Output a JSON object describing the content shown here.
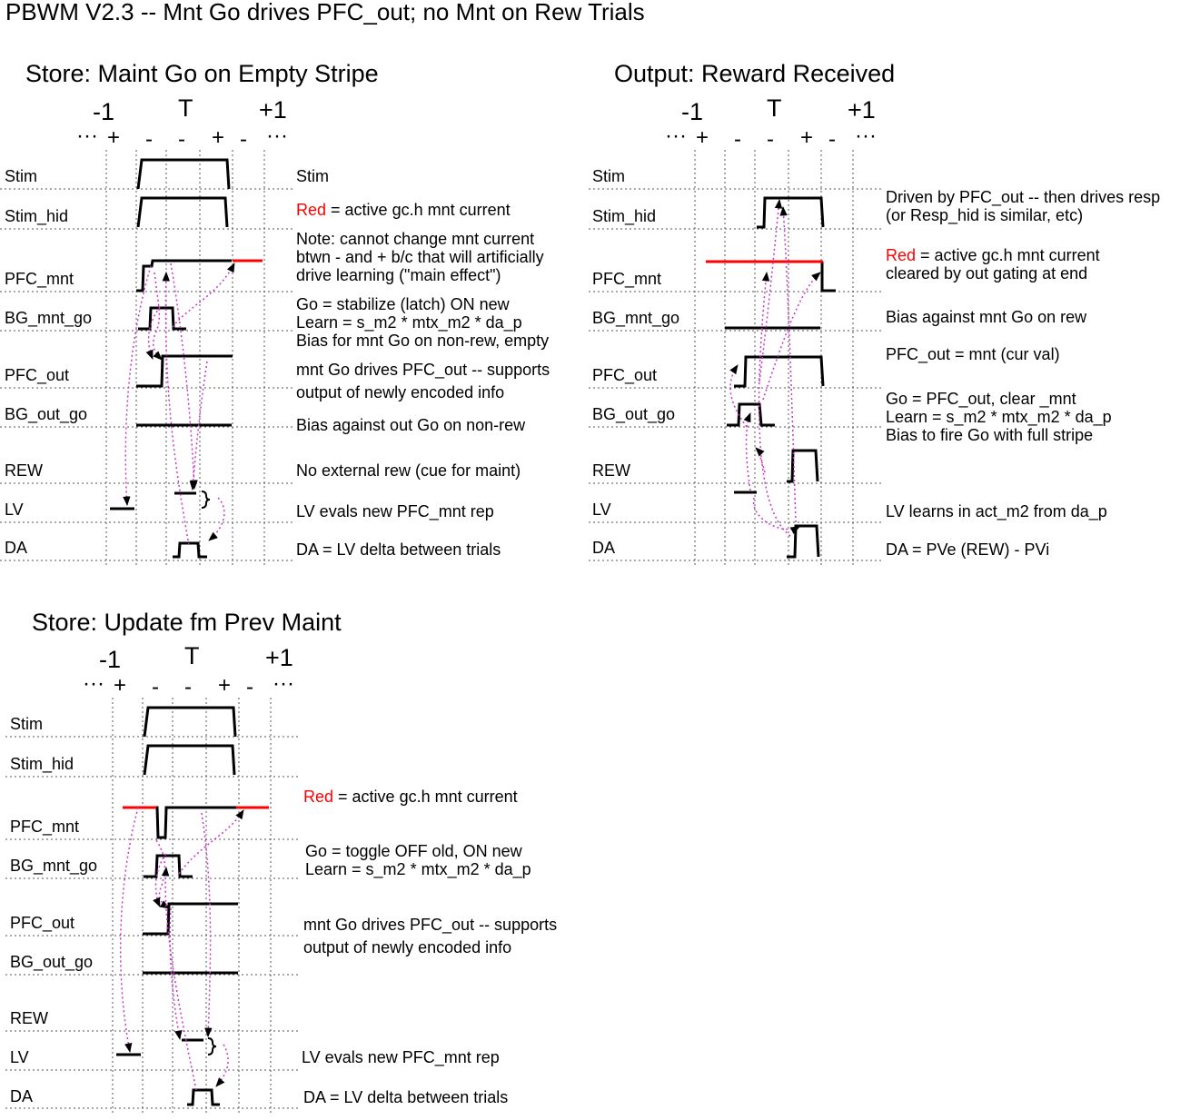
{
  "title": "PBWM V2.3 -- Mnt Go drives PFC_out; no Mnt on Rew Trials",
  "colors": {
    "active_mnt": "#ff0000",
    "arrow": "#cc33cc",
    "grid": "#555555",
    "signal": "#000000"
  },
  "panels": [
    {
      "title": "Store: Maint Go on Empty Stripe",
      "trial_labels": [
        "-1",
        "T",
        "+1"
      ],
      "phase_marks": [
        "···",
        "+",
        "-",
        "-",
        "+",
        "-",
        "···"
      ],
      "rows": [
        "Stim",
        "Stim_hid",
        "PFC_mnt",
        "BG_mnt_go",
        "PFC_out",
        "BG_out_go",
        "REW",
        "LV",
        "DA"
      ],
      "notes": [
        {
          "text": "Stim"
        },
        {
          "red": "Red",
          "text": " = active gc.h mnt current"
        },
        {
          "text": "Note: cannot change mnt current"
        },
        {
          "text": "btwn - and + b/c that will artificially"
        },
        {
          "text": "drive learning (\"main effect\")"
        },
        {
          "text": "Go = stabilize (latch) ON new"
        },
        {
          "text": "Learn = s_m2 * mtx_m2 * da_p"
        },
        {
          "text": "Bias for mnt Go on non-rew, empty"
        },
        {
          "text": "mnt Go drives PFC_out -- supports"
        },
        {
          "text": "output of newly encoded info"
        },
        {
          "text": "Bias against out Go on non-rew"
        },
        {
          "text": "No external rew (cue for maint)"
        },
        {
          "text": "LV evals new PFC_mnt rep"
        },
        {
          "text": "DA = LV delta between trials"
        }
      ]
    },
    {
      "title": "Output: Reward Received",
      "trial_labels": [
        "-1",
        "T",
        "+1"
      ],
      "phase_marks": [
        "···",
        "+",
        "-",
        "-",
        "+",
        "-",
        "···"
      ],
      "rows": [
        "Stim",
        "Stim_hid",
        "PFC_mnt",
        "BG_mnt_go",
        "PFC_out",
        "BG_out_go",
        "REW",
        "LV",
        "DA"
      ],
      "notes": [
        {
          "text": "Driven by PFC_out -- then drives resp"
        },
        {
          "text": "(or Resp_hid is similar, etc)"
        },
        {
          "red": "Red",
          "text": " = active gc.h mnt current"
        },
        {
          "text": "cleared by out gating at end"
        },
        {
          "text": "Bias against mnt Go on rew"
        },
        {
          "text": "PFC_out = mnt (cur val)"
        },
        {
          "text": "Go = PFC_out, clear _mnt"
        },
        {
          "text": "Learn = s_m2 * mtx_m2 * da_p"
        },
        {
          "text": "Bias to fire Go with full stripe"
        },
        {
          "text": "LV learns in act_m2 from da_p"
        },
        {
          "text": "DA = PVe (REW) - PVi"
        }
      ]
    },
    {
      "title": "Store: Update fm Prev Maint",
      "trial_labels": [
        "-1",
        "T",
        "+1"
      ],
      "phase_marks": [
        "···",
        "+",
        "-",
        "-",
        "+",
        "-",
        "···"
      ],
      "rows": [
        "Stim",
        "Stim_hid",
        "PFC_mnt",
        "BG_mnt_go",
        "PFC_out",
        "BG_out_go",
        "REW",
        "LV",
        "DA"
      ],
      "notes": [
        {
          "red": "Red",
          "text": " = active gc.h mnt current"
        },
        {
          "text": "Go = toggle OFF old, ON new"
        },
        {
          "text": "Learn = s_m2 * mtx_m2 * da_p"
        },
        {
          "text": "mnt Go drives PFC_out -- supports"
        },
        {
          "text": "output of newly encoded info"
        },
        {
          "text": "LV evals new PFC_mnt rep"
        },
        {
          "text": "DA = LV delta between trials"
        }
      ]
    }
  ]
}
